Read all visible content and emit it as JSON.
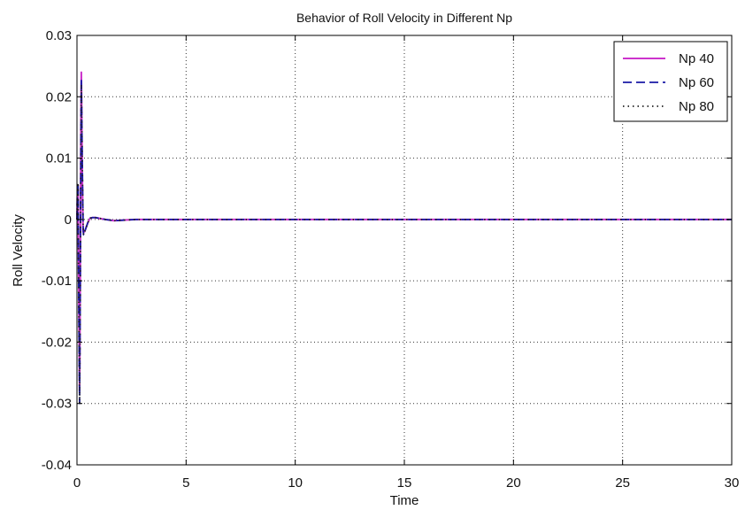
{
  "chart_data": {
    "type": "line",
    "title": "Behavior of Roll Velocity in Different Np",
    "xlabel": "Time",
    "ylabel": "Roll Velocity",
    "xlim": [
      0,
      30
    ],
    "ylim": [
      -0.04,
      0.03
    ],
    "xticks": [
      0,
      5,
      10,
      15,
      20,
      25,
      30
    ],
    "xtick_labels": [
      "0",
      "5",
      "10",
      "15",
      "20",
      "25",
      "30"
    ],
    "yticks": [
      -0.04,
      -0.03,
      -0.02,
      -0.01,
      0,
      0.01,
      0.02,
      0.03
    ],
    "ytick_labels": [
      "-0.04",
      "-0.03",
      "-0.02",
      "-0.01",
      "0",
      "0.01",
      "0.02",
      "0.03"
    ],
    "grid": true,
    "legend_position": "top-right",
    "series": [
      {
        "name": "Np 40",
        "color": "#cc33cc",
        "style": "solid",
        "x": [
          0,
          0.02,
          0.05,
          0.08,
          0.1,
          0.12,
          0.15,
          0.18,
          0.2,
          0.24,
          0.28,
          0.3,
          0.35,
          0.4,
          0.45,
          0.5,
          0.6,
          0.7,
          0.85,
          1.0,
          1.3,
          1.7,
          2.2,
          2.7,
          3.5,
          5,
          10,
          15,
          20,
          25,
          30
        ],
        "y": [
          0,
          0.004,
          0.005,
          -0.01,
          -0.02,
          -0.028,
          -0.01,
          0.015,
          0.024,
          0.008,
          -0.002,
          -0.002,
          -0.002,
          -0.0015,
          -0.001,
          -0.0005,
          0.0002,
          0.0003,
          0.0003,
          0.0002,
          0,
          -0.0002,
          -0.0001,
          0,
          0,
          0,
          0,
          0,
          0,
          0,
          0
        ]
      },
      {
        "name": "Np 60",
        "color": "#1a1aa6",
        "style": "dashed",
        "x": [
          0,
          0.02,
          0.05,
          0.08,
          0.1,
          0.12,
          0.15,
          0.18,
          0.2,
          0.24,
          0.28,
          0.3,
          0.35,
          0.4,
          0.45,
          0.5,
          0.6,
          0.7,
          0.85,
          1.0,
          1.3,
          1.7,
          2.2,
          2.7,
          3.5,
          5,
          10,
          15,
          20,
          25,
          30
        ],
        "y": [
          0,
          0.005,
          0.006,
          -0.012,
          -0.022,
          -0.03,
          -0.012,
          0.013,
          0.023,
          0.01,
          -0.001,
          -0.0025,
          -0.002,
          -0.0015,
          -0.001,
          -0.0005,
          0.0002,
          0.0003,
          0.0003,
          0.0002,
          0,
          -0.0002,
          -0.0001,
          0,
          0,
          0,
          0,
          0,
          0,
          0,
          0
        ]
      },
      {
        "name": "Np 80",
        "color": "#222222",
        "style": "dotted",
        "x": [
          0,
          0.02,
          0.05,
          0.08,
          0.1,
          0.12,
          0.15,
          0.18,
          0.2,
          0.24,
          0.28,
          0.3,
          0.35,
          0.4,
          0.45,
          0.5,
          0.6,
          0.7,
          0.85,
          1.0,
          1.3,
          1.7,
          2.2,
          2.7,
          3.5,
          5,
          10,
          15,
          20,
          25,
          30
        ],
        "y": [
          0,
          0.005,
          0.006,
          -0.012,
          -0.022,
          -0.03,
          -0.012,
          0.013,
          0.022,
          0.01,
          -0.001,
          -0.0025,
          -0.002,
          -0.0015,
          -0.001,
          -0.0005,
          0.0002,
          0.0003,
          0.0003,
          0.0002,
          0,
          -0.0002,
          -0.0001,
          0,
          0,
          0,
          0,
          0,
          0,
          0,
          0
        ]
      }
    ]
  }
}
